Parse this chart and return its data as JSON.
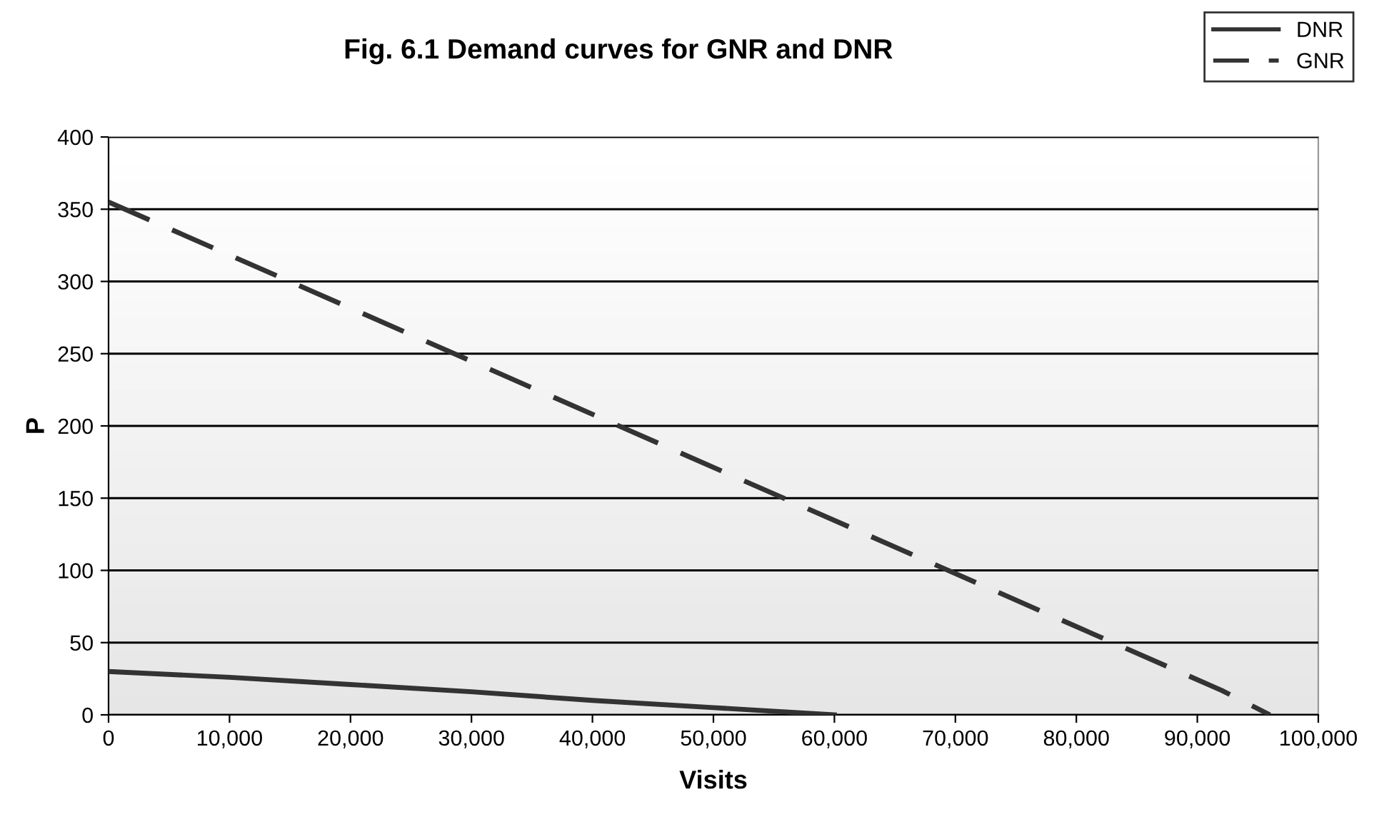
{
  "chart_data": {
    "type": "line",
    "title": "Fig. 6.1 Demand curves for GNR and DNR",
    "xlabel": "Visits",
    "ylabel": "P",
    "xlim": [
      0,
      100000
    ],
    "ylim": [
      0,
      400
    ],
    "xticks": [
      {
        "value": 0,
        "label": "0"
      },
      {
        "value": 10000,
        "label": "10,000"
      },
      {
        "value": 20000,
        "label": "20,000"
      },
      {
        "value": 30000,
        "label": "30,000"
      },
      {
        "value": 40000,
        "label": "40,000"
      },
      {
        "value": 50000,
        "label": "50,000"
      },
      {
        "value": 60000,
        "label": "60,000"
      },
      {
        "value": 70000,
        "label": "70,000"
      },
      {
        "value": 80000,
        "label": "80,000"
      },
      {
        "value": 90000,
        "label": "90,000"
      },
      {
        "value": 100000,
        "label": "100,000"
      }
    ],
    "yticks": [
      0,
      50,
      100,
      150,
      200,
      250,
      300,
      350,
      400
    ],
    "grid": "y",
    "legend": "top right",
    "marker": "none",
    "series": [
      {
        "name": "DNR",
        "color": "#333333",
        "line_style": "solid",
        "x": [
          0,
          10000,
          20000,
          30000,
          40000,
          50000,
          60000
        ],
        "values": [
          30,
          26,
          21,
          16,
          10,
          5,
          0
        ]
      },
      {
        "name": "GNR",
        "color": "#333333",
        "line_style": "dashed",
        "x": [
          0,
          92000,
          96000
        ],
        "values": [
          355,
          17,
          0
        ]
      }
    ]
  }
}
